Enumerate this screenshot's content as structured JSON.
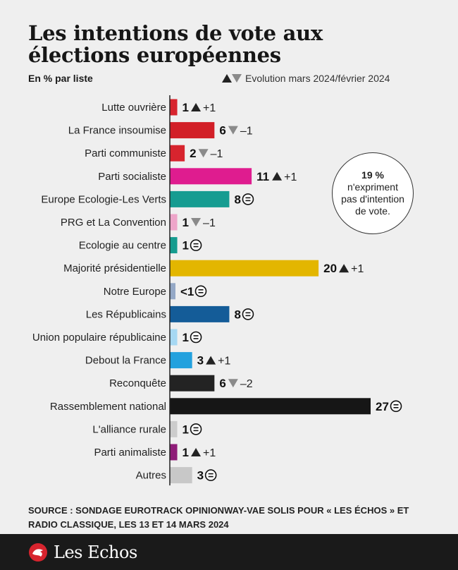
{
  "header": {
    "title": "Les intentions de vote aux élections européennes",
    "subtitle": "En % par liste",
    "legend_label": "Evolution mars 2024/février 2024"
  },
  "note": {
    "value": "19 %",
    "text": "n'expriment pas d'intention de vote."
  },
  "source": "SOURCE : SONDAGE EUROTRACK OPINIONWAY-VAE SOLIS POUR « LES ÉCHOS » ET RADIO CLASSIQUE, LES 13 ET 14 MARS 2024",
  "footer": {
    "brand": "Les Echos"
  },
  "colors": {
    "arrow_up": "#222222",
    "arrow_down": "#8a8a8a",
    "axis": "#222222"
  },
  "chart_data": {
    "type": "bar",
    "orientation": "horizontal",
    "categories": [
      "Lutte ouvrière",
      "La France insoumise",
      "Parti communiste",
      "Parti socialiste",
      "Europe Ecologie-Les Verts",
      "PRG et La Convention",
      "Ecologie au centre",
      "Majorité présidentielle",
      "Notre Europe",
      "Les Républicains",
      "Union populaire républicaine",
      "Debout la France",
      "Reconquête",
      "Rassemblement national",
      "L'alliance rurale",
      "Parti animaliste",
      "Autres"
    ],
    "values": [
      1,
      6,
      2,
      11,
      8,
      1,
      1,
      20,
      0.5,
      8,
      1,
      3,
      6,
      27,
      1,
      1,
      3
    ],
    "value_labels": [
      "1",
      "6",
      "2",
      "11",
      "8",
      "1",
      "1",
      "20",
      "<1",
      "8",
      "1",
      "3",
      "6",
      "27",
      "1",
      "1",
      "3"
    ],
    "evolution": [
      1,
      -1,
      -1,
      1,
      0,
      -1,
      0,
      1,
      0,
      0,
      0,
      1,
      -2,
      0,
      0,
      1,
      0
    ],
    "evolution_labels": [
      "+1",
      "–1",
      "–1",
      "+1",
      "",
      "–1",
      "",
      "+1",
      "",
      "",
      "",
      "+1",
      "–2",
      "",
      "",
      "+1",
      ""
    ],
    "bar_colors": [
      "#d7242e",
      "#d21f27",
      "#d7242e",
      "#df1c8f",
      "#169c91",
      "#eea5c9",
      "#159c8f",
      "#e3b600",
      "#94a8c6",
      "#145c98",
      "#a6d8f3",
      "#23a1de",
      "#232323",
      "#161616",
      "#cccccc",
      "#8f1c78",
      "#c8c8c8"
    ],
    "xlim": [
      0,
      27
    ]
  }
}
